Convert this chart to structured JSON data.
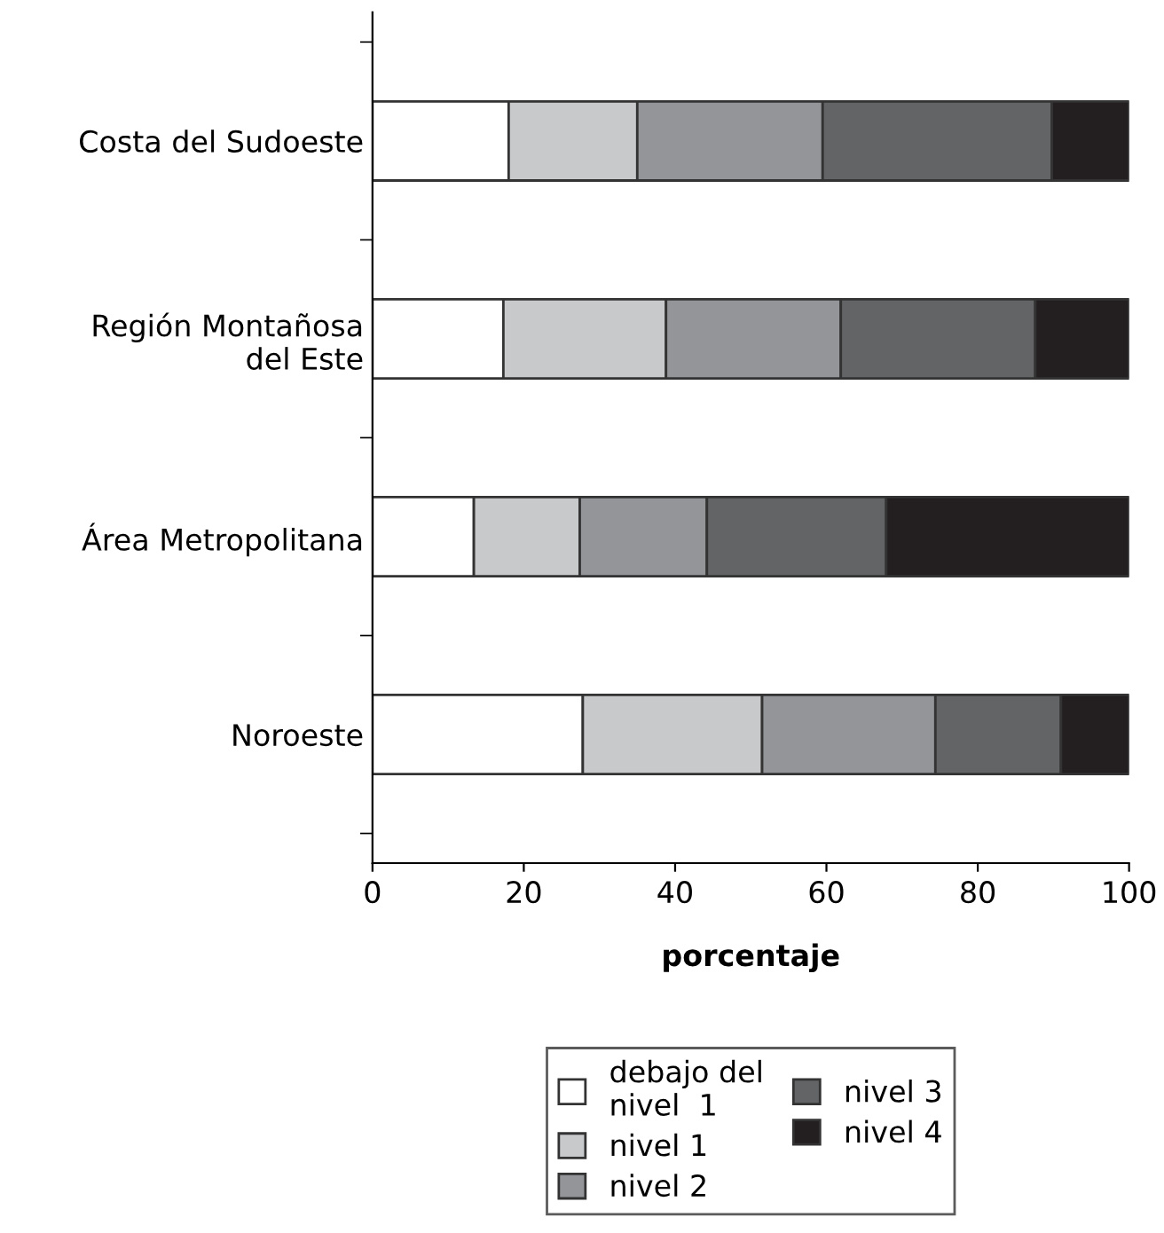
{
  "chart_data": {
    "type": "bar",
    "orientation": "horizontal",
    "stacked": true,
    "xlabel": "porcentaje",
    "categories": [
      "Costa del Sudoeste",
      "Región Montañosa\ndel Este",
      "Área Metropolitana",
      "Noroeste"
    ],
    "series": [
      {
        "name": "debajo del\nnivel  1",
        "color": "#ffffff",
        "values": [
          18,
          17.3,
          13.4,
          27.8
        ]
      },
      {
        "name": "nivel 1",
        "color": "#c8c9cb",
        "values": [
          17,
          21.5,
          14,
          23.7
        ]
      },
      {
        "name": "nivel 2",
        "color": "#939598",
        "values": [
          24.5,
          23.1,
          16.8,
          22.9
        ]
      },
      {
        "name": "nivel 3",
        "color": "#636466",
        "values": [
          30.3,
          25.7,
          23.7,
          16.6
        ]
      },
      {
        "name": "nivel 4",
        "color": "#231f20",
        "values": [
          10.2,
          12.4,
          32.1,
          9
        ]
      }
    ],
    "xlim": [
      0,
      100
    ],
    "xticks": [
      0,
      20,
      40,
      60,
      80,
      100
    ],
    "legend": "bottom",
    "grid": false
  }
}
